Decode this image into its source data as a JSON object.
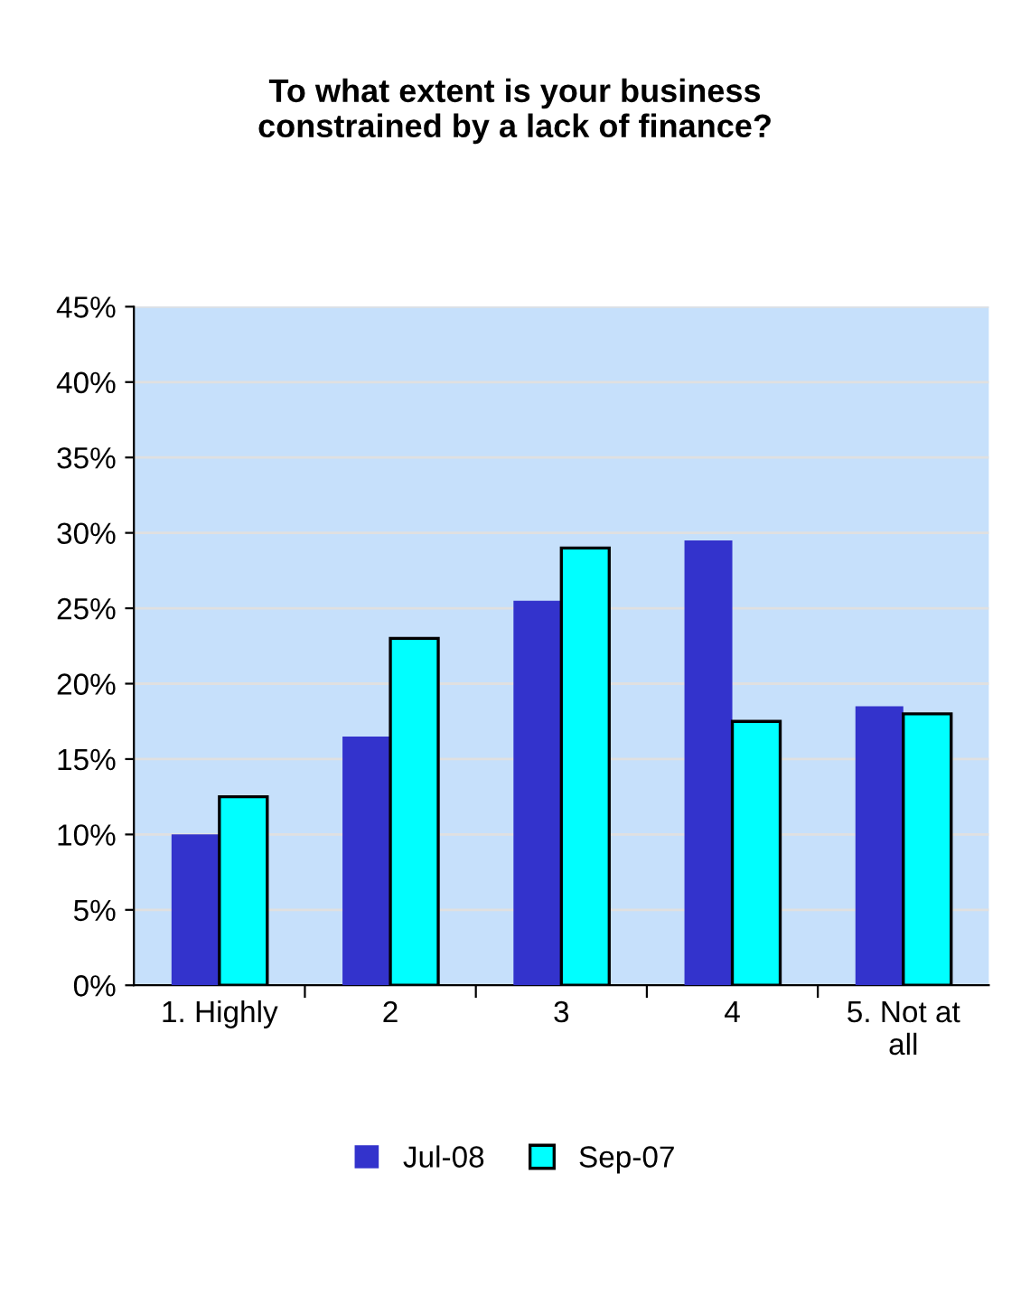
{
  "chart_data": {
    "type": "bar",
    "title": "To what extent is your business\nconstrained by a lack of finance?",
    "categories": [
      "1. Highly",
      "2",
      "3",
      "4",
      "5. Not at\nall"
    ],
    "series": [
      {
        "name": "Jul-08",
        "color": "#3333cc",
        "values": [
          10,
          16.5,
          25.5,
          29.5,
          18.5
        ]
      },
      {
        "name": "Sep-07",
        "color": "#00ffff",
        "values": [
          12.5,
          23,
          29,
          17.5,
          18
        ]
      }
    ],
    "ylim": [
      0,
      45
    ],
    "yticks": [
      {
        "value": 0,
        "label": "0%"
      },
      {
        "value": 5,
        "label": "5%"
      },
      {
        "value": 10,
        "label": "10%"
      },
      {
        "value": 15,
        "label": "15%"
      },
      {
        "value": 20,
        "label": "20%"
      },
      {
        "value": 25,
        "label": "25%"
      },
      {
        "value": 30,
        "label": "30%"
      },
      {
        "value": 35,
        "label": "35%"
      },
      {
        "value": 40,
        "label": "40%"
      },
      {
        "value": 45,
        "label": "45%"
      }
    ],
    "grid": "y",
    "legend": "bottom"
  }
}
